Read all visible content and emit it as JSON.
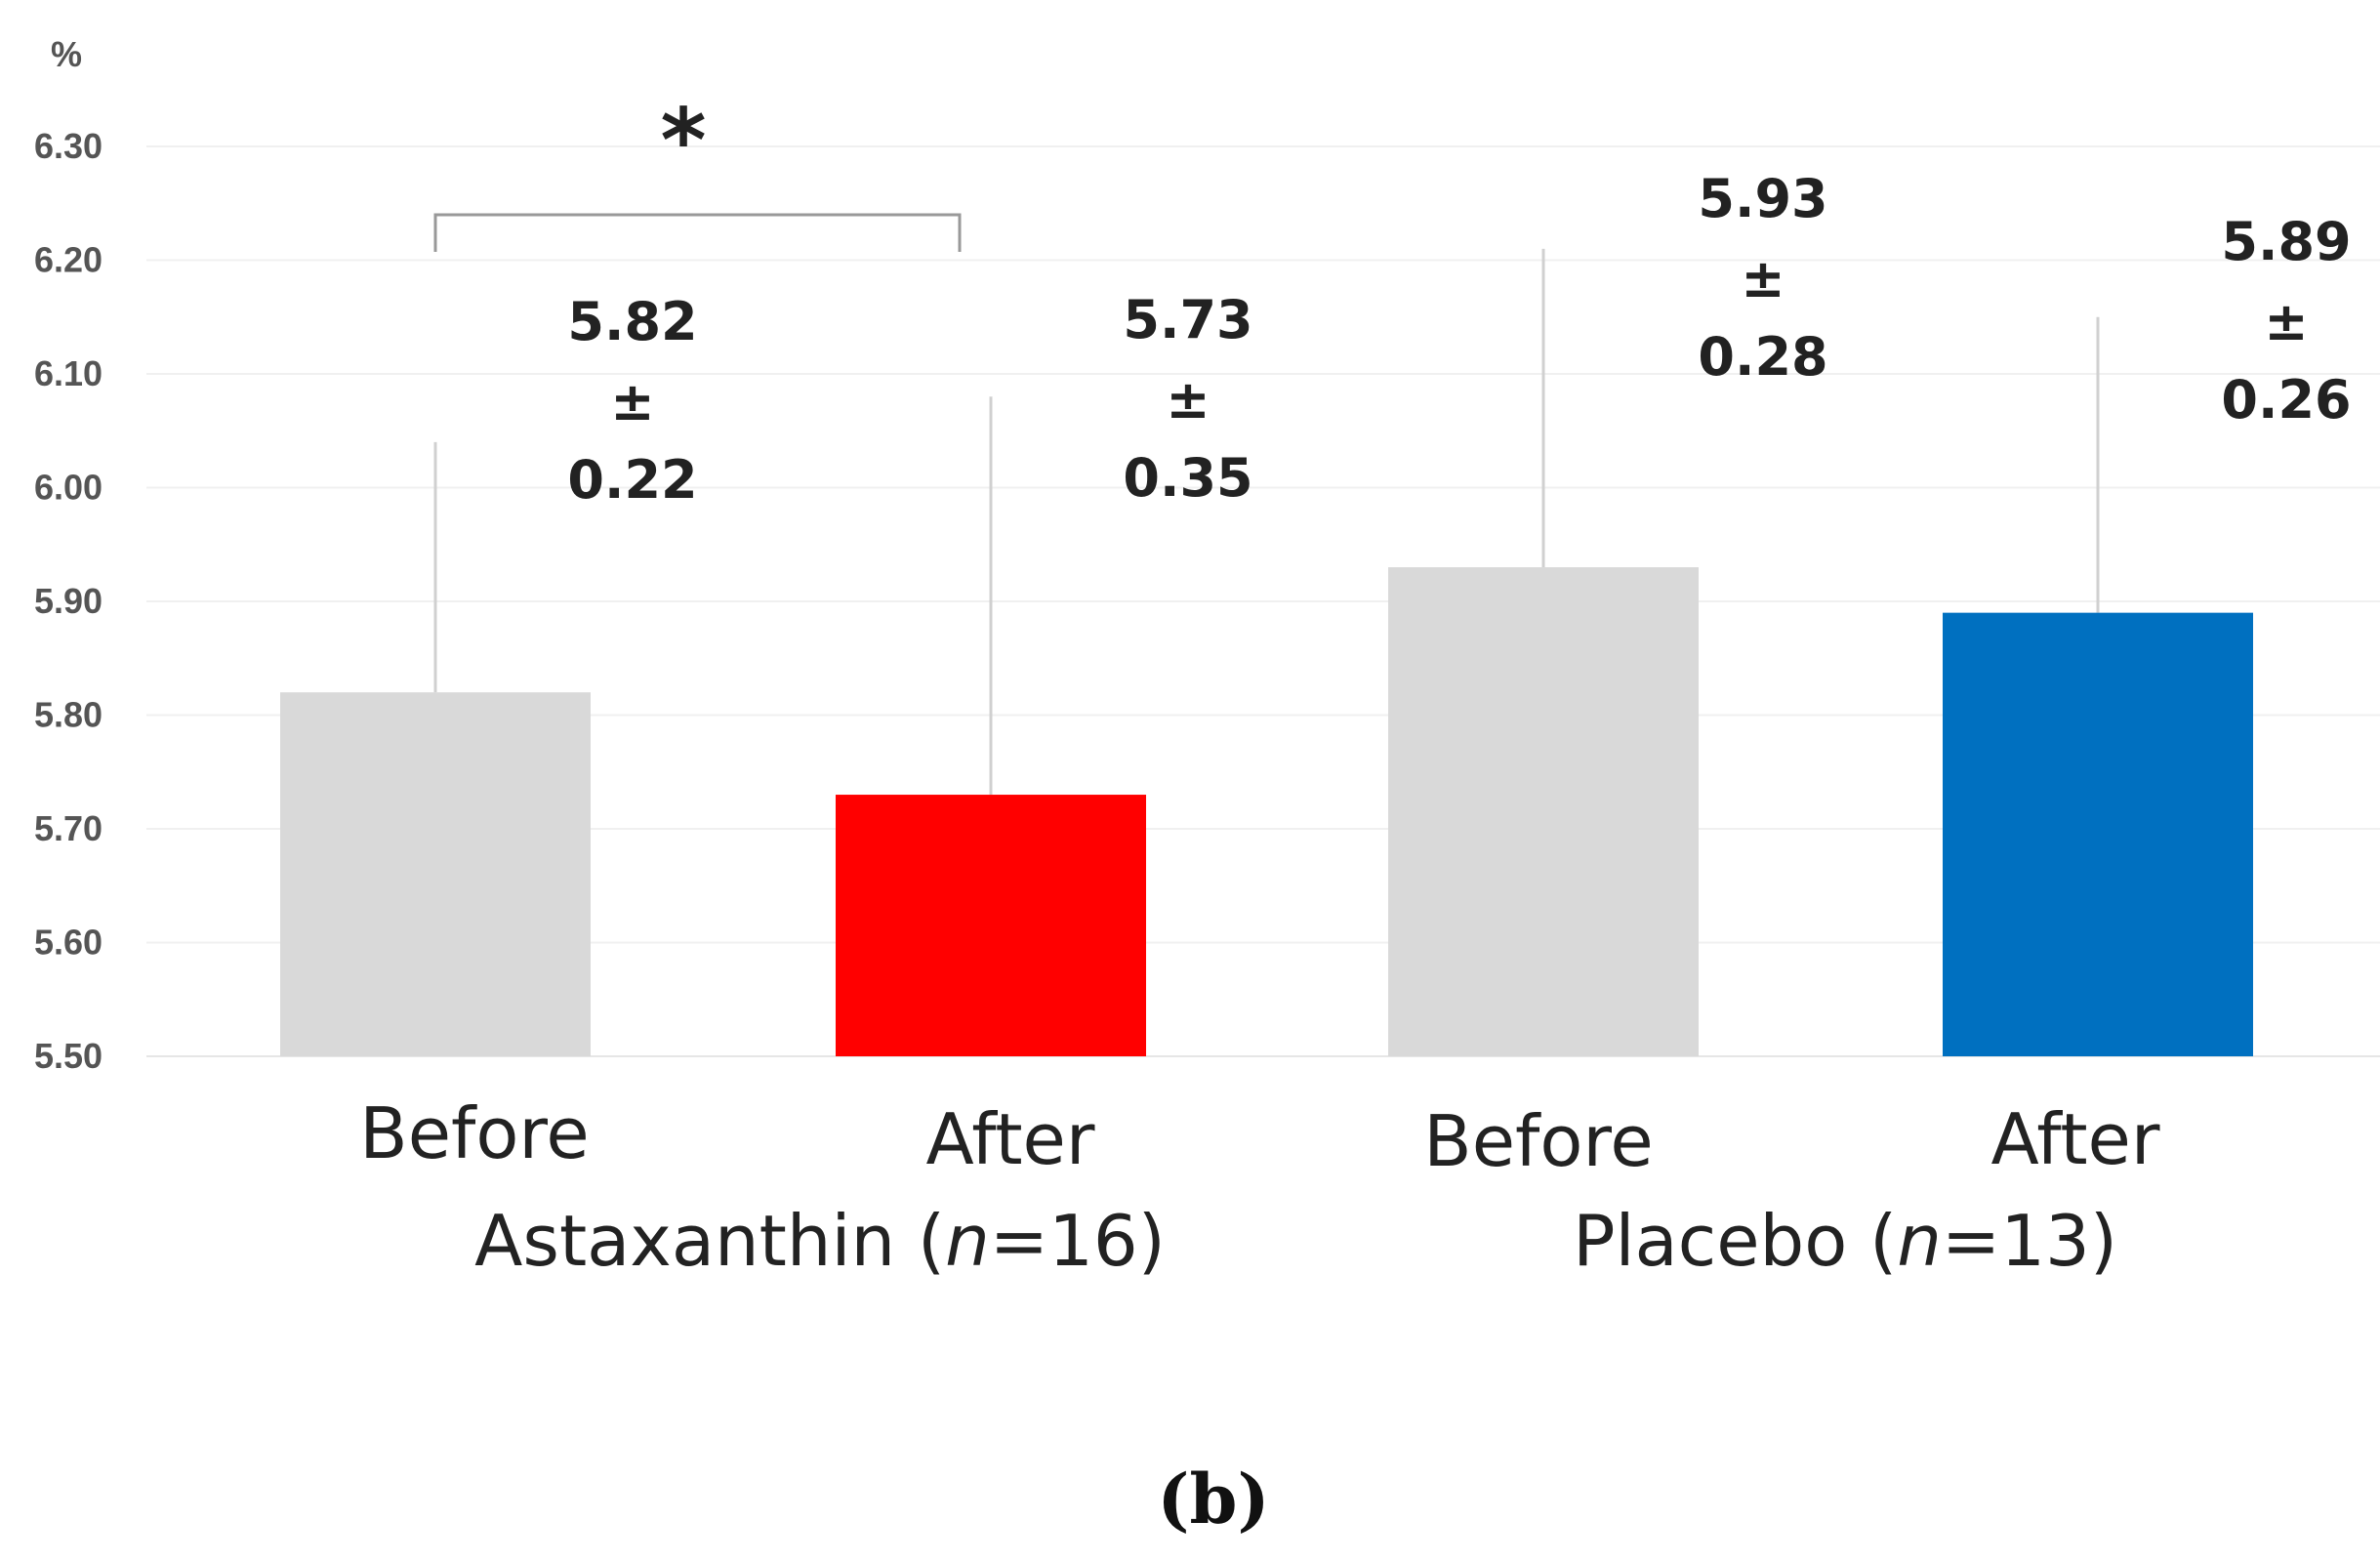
{
  "chart_data": {
    "type": "bar",
    "unit_label": "%",
    "ylim": [
      5.5,
      6.3
    ],
    "yticks": [
      "5.50",
      "5.60",
      "5.70",
      "5.80",
      "5.90",
      "6.00",
      "6.10",
      "6.20",
      "6.30"
    ],
    "grid": true,
    "categories": [
      "Before",
      "After",
      "Before",
      "After"
    ],
    "groups": [
      {
        "label": "Astaxanthin (n=16)",
        "prefix": "Astaxanthin (",
        "n": "n",
        "suffix": "=16)"
      },
      {
        "label": "Placebo (n=13)",
        "prefix": "Placebo (",
        "n": "n",
        "suffix": "=13)"
      }
    ],
    "values": [
      5.82,
      5.73,
      5.93,
      5.89
    ],
    "errors": [
      0.22,
      0.35,
      0.28,
      0.26
    ],
    "value_labels": [
      {
        "mean": "5.82",
        "pm": "±",
        "sd": "0.22"
      },
      {
        "mean": "5.73",
        "pm": "±",
        "sd": "0.35"
      },
      {
        "mean": "5.93",
        "pm": "±",
        "sd": "0.28"
      },
      {
        "mean": "5.89",
        "pm": "±",
        "sd": "0.26"
      }
    ],
    "colors": [
      "#d9d9d9",
      "#ff0000",
      "#d9d9d9",
      "#0070c0"
    ],
    "significance": {
      "marker": "*",
      "between": [
        0,
        1
      ]
    },
    "panel_label": "(b)"
  }
}
